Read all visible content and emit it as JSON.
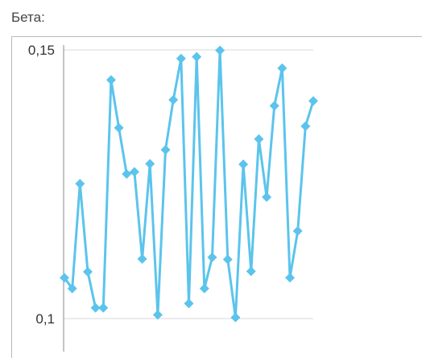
{
  "field_label": "Бета:",
  "chart_data": {
    "type": "line",
    "title": "",
    "xlabel": "",
    "ylabel": "",
    "ylim": [
      0.1,
      0.15
    ],
    "y_ticks": [
      {
        "value": 0.15,
        "label": "0,15"
      },
      {
        "value": 0.1,
        "label": "0,1"
      }
    ],
    "grid": true,
    "marker": "diamond",
    "color": "#5bc4ec",
    "gridline_color": "#d8d8d8",
    "axis_color": "#888888",
    "values": [
      0.1076,
      0.1056,
      0.1251,
      0.1087,
      0.102,
      0.102,
      0.1444,
      0.1355,
      0.1269,
      0.1273,
      0.1111,
      0.1288,
      0.1007,
      0.1314,
      0.1407,
      0.1484,
      0.1028,
      0.1487,
      0.1056,
      0.1114,
      0.1499,
      0.111,
      0.1002,
      0.1287,
      0.1088,
      0.1334,
      0.1226,
      0.1396,
      0.1466,
      0.1076,
      0.1163,
      0.1358,
      0.1405
    ]
  }
}
